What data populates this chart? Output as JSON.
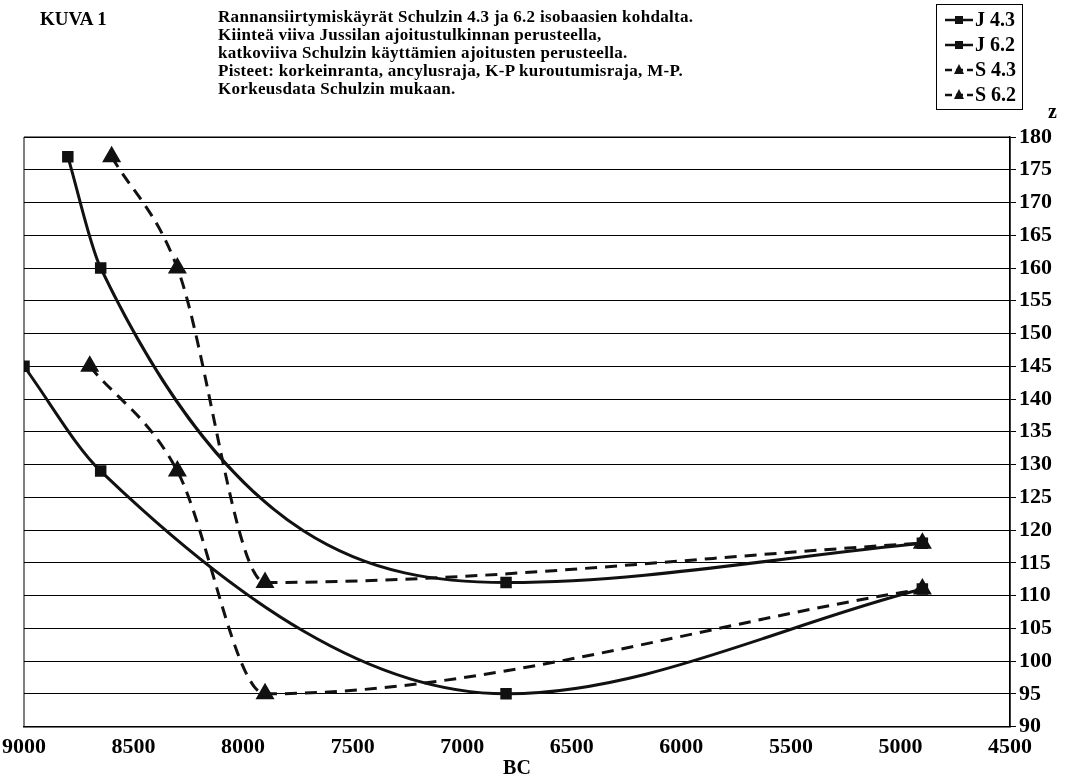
{
  "chart_data": {
    "type": "line",
    "title": "KUVA 1",
    "subtitle": "Rannansiirtymiskäyrät Schulzin 4.3 ja 6.2 isobaasien kohdalta.\nKiinteä viiva Jussilan ajoitustulkinnan perusteella,\nkatkoviiva Schulzin käyttämien ajoitusten perusteella.\nPisteet: korkeinranta, ancylusraja, K-P kuroutumisraja, M-P.\nKorkeusdata Schulzin mukaan.",
    "xlabel": "BC",
    "ylabel": "z",
    "series": [
      {
        "name": "J 4.3",
        "color": "#111111",
        "marker": "square",
        "line_style": "solid",
        "x": [
          9000,
          8650,
          6800,
          4900
        ],
        "values": [
          145,
          129,
          95,
          111
        ]
      },
      {
        "name": "J 6.2",
        "color": "#111111",
        "marker": "square",
        "line_style": "solid",
        "x": [
          8800,
          8650,
          6800,
          4900
        ],
        "values": [
          177,
          160,
          112,
          118
        ]
      },
      {
        "name": "S 4.3",
        "color": "#111111",
        "marker": "triangle",
        "line_style": "dashed",
        "x": [
          8700,
          8300,
          7900,
          4900
        ],
        "values": [
          145,
          129,
          95,
          111
        ]
      },
      {
        "name": "S 6.2",
        "color": "#111111",
        "marker": "triangle",
        "line_style": "dashed",
        "x": [
          8600,
          8300,
          7900,
          4900
        ],
        "values": [
          177,
          160,
          112,
          118
        ]
      }
    ],
    "xlim": [
      9000,
      4500
    ],
    "xticks": [
      9000,
      8500,
      8000,
      7500,
      7000,
      6500,
      6000,
      5500,
      5000,
      4500
    ],
    "ylim": [
      90,
      180
    ],
    "yticks": [
      90,
      95,
      100,
      105,
      110,
      115,
      120,
      125,
      130,
      135,
      140,
      145,
      150,
      155,
      160,
      165,
      170,
      175,
      180
    ],
    "grid": "y",
    "legend": "top right"
  }
}
